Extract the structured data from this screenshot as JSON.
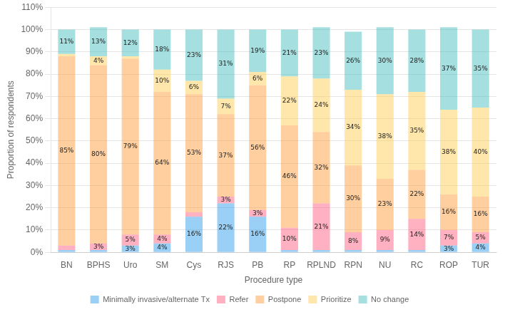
{
  "chart_data": {
    "type": "bar",
    "stacked": true,
    "xlabel": "Procedure type",
    "ylabel": "Proportion of respondents",
    "categories": [
      "BN",
      "BPHS",
      "Uro",
      "SM",
      "Cys",
      "RJS",
      "PB",
      "RP",
      "RPLND",
      "RPN",
      "NU",
      "RC",
      "ROP",
      "TUR"
    ],
    "series": [
      {
        "name": "Minimally invasive/alternate Tx",
        "values": [
          1,
          1,
          3,
          4,
          16,
          22,
          16,
          1,
          1,
          1,
          1,
          1,
          3,
          4
        ],
        "value_labels": [
          null,
          null,
          "3%",
          "4%",
          "16%",
          "22%",
          "16%",
          null,
          null,
          null,
          null,
          null,
          "3%",
          "4%"
        ]
      },
      {
        "name": "Refer",
        "values": [
          2,
          3,
          5,
          4,
          2,
          3,
          3,
          10,
          21,
          8,
          9,
          14,
          7,
          5
        ],
        "value_labels": [
          null,
          "3%",
          "5%",
          "4%",
          null,
          "3%",
          "3%",
          "10%",
          "21%",
          "8%",
          "9%",
          "14%",
          "7%",
          "5%"
        ]
      },
      {
        "name": "Postpone",
        "values": [
          85,
          80,
          79,
          64,
          53,
          37,
          56,
          46,
          32,
          30,
          23,
          22,
          16,
          16
        ],
        "value_labels": [
          "85%",
          "80%",
          "79%",
          "64%",
          "53%",
          "37%",
          "56%",
          "46%",
          "32%",
          "30%",
          "23%",
          "22%",
          "16%",
          "16%"
        ]
      },
      {
        "name": "Prioritize",
        "values": [
          1,
          4,
          1,
          10,
          6,
          7,
          6,
          22,
          24,
          34,
          38,
          35,
          38,
          40
        ],
        "value_labels": [
          null,
          "4%",
          null,
          "10%",
          "6%",
          "7%",
          "6%",
          "22%",
          "24%",
          "34%",
          "38%",
          "35%",
          "38%",
          "40%"
        ]
      },
      {
        "name": "No change",
        "values": [
          11,
          13,
          12,
          18,
          23,
          31,
          19,
          21,
          23,
          26,
          30,
          28,
          37,
          35
        ],
        "value_labels": [
          "11%",
          "13%",
          "12%",
          "18%",
          "23%",
          "31%",
          "19%",
          "21%",
          "23%",
          "26%",
          "30%",
          "28%",
          "37%",
          "35%"
        ]
      }
    ],
    "ylim": [
      0,
      110
    ],
    "yticks": [
      {
        "value": 0,
        "label": "0%"
      },
      {
        "value": 10,
        "label": "10%"
      },
      {
        "value": 20,
        "label": "20%"
      },
      {
        "value": 30,
        "label": "30%"
      },
      {
        "value": 40,
        "label": "40%"
      },
      {
        "value": 50,
        "label": "50%"
      },
      {
        "value": 60,
        "label": "60%"
      },
      {
        "value": 70,
        "label": "70%"
      },
      {
        "value": 80,
        "label": "80%"
      },
      {
        "value": 90,
        "label": "90%"
      },
      {
        "value": 100,
        "label": "100%"
      },
      {
        "value": 110,
        "label": "110%"
      }
    ],
    "grid": true,
    "legend": "bottom",
    "data_labels": true
  }
}
